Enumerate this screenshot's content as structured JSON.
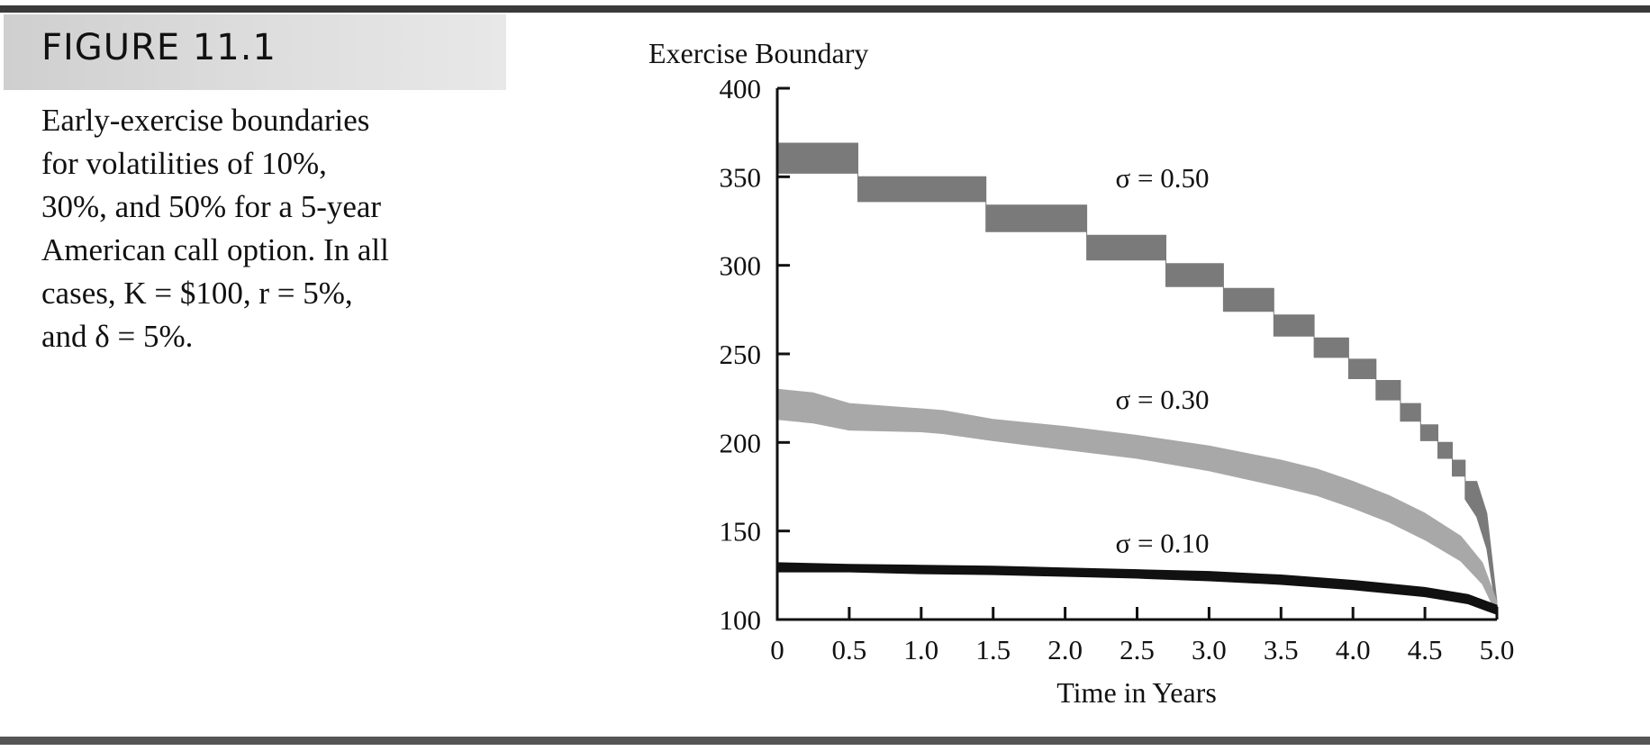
{
  "figure": {
    "label": "FIGURE 11.1",
    "caption_lines": [
      "Early-exercise boundaries",
      "for volatilities of 10%,",
      "30%, and 50% for a 5-year",
      "American call option. In all",
      "cases, K = $100, r = 5%,",
      "and δ = 5%."
    ]
  },
  "chart_data": {
    "type": "line",
    "title": "",
    "ylabel": "Exercise Boundary",
    "xlabel": "Time in Years",
    "xlim": [
      0,
      5
    ],
    "ylim": [
      100,
      400
    ],
    "x_ticks": [
      "0",
      "0.5",
      "1.0",
      "1.5",
      "2.0",
      "2.5",
      "3.0",
      "3.5",
      "4.0",
      "4.5",
      "5.0"
    ],
    "y_ticks": [
      "100",
      "150",
      "200",
      "250",
      "300",
      "350",
      "400"
    ],
    "grid": false,
    "colors": {
      "sigma_050": "#7a7a7a",
      "sigma_030": "#a8a8a8",
      "sigma_010": "#111111"
    },
    "series": [
      {
        "name": "σ = 0.50",
        "band_upper": [
          [
            0,
            369
          ],
          [
            0.56,
            369
          ],
          [
            0.56,
            350
          ],
          [
            1.45,
            350
          ],
          [
            1.45,
            334
          ],
          [
            2.15,
            334
          ],
          [
            2.15,
            317
          ],
          [
            2.7,
            317
          ],
          [
            2.7,
            301
          ],
          [
            3.1,
            301
          ],
          [
            3.1,
            287
          ],
          [
            3.45,
            287
          ],
          [
            3.45,
            272
          ],
          [
            3.73,
            272
          ],
          [
            3.73,
            259
          ],
          [
            3.97,
            259
          ],
          [
            3.97,
            247
          ],
          [
            4.16,
            247
          ],
          [
            4.16,
            235
          ],
          [
            4.33,
            235
          ],
          [
            4.33,
            222
          ],
          [
            4.47,
            222
          ],
          [
            4.47,
            210
          ],
          [
            4.59,
            210
          ],
          [
            4.59,
            200
          ],
          [
            4.69,
            200
          ],
          [
            4.69,
            190
          ],
          [
            4.78,
            190
          ],
          [
            4.78,
            178
          ],
          [
            4.86,
            178
          ],
          [
            4.93,
            160
          ],
          [
            5.0,
            110
          ]
        ],
        "band_lower": [
          [
            0,
            352
          ],
          [
            0.56,
            352
          ],
          [
            0.56,
            336
          ],
          [
            1.45,
            336
          ],
          [
            1.45,
            319
          ],
          [
            2.15,
            319
          ],
          [
            2.15,
            303
          ],
          [
            2.7,
            303
          ],
          [
            2.7,
            288
          ],
          [
            3.1,
            288
          ],
          [
            3.1,
            274
          ],
          [
            3.45,
            274
          ],
          [
            3.45,
            260
          ],
          [
            3.73,
            260
          ],
          [
            3.73,
            248
          ],
          [
            3.97,
            248
          ],
          [
            3.97,
            236
          ],
          [
            4.16,
            236
          ],
          [
            4.16,
            224
          ],
          [
            4.33,
            224
          ],
          [
            4.33,
            212
          ],
          [
            4.47,
            212
          ],
          [
            4.47,
            201
          ],
          [
            4.59,
            201
          ],
          [
            4.59,
            191
          ],
          [
            4.69,
            191
          ],
          [
            4.69,
            181
          ],
          [
            4.78,
            181
          ],
          [
            4.78,
            168
          ],
          [
            4.86,
            158
          ],
          [
            4.93,
            140
          ],
          [
            5.0,
            103
          ]
        ]
      },
      {
        "name": "σ = 0.30",
        "band_upper": [
          [
            0,
            230
          ],
          [
            0.25,
            228
          ],
          [
            0.5,
            222
          ],
          [
            1.0,
            219
          ],
          [
            1.15,
            218
          ],
          [
            1.5,
            213
          ],
          [
            2.0,
            209
          ],
          [
            2.5,
            204
          ],
          [
            3.0,
            198
          ],
          [
            3.5,
            190
          ],
          [
            3.75,
            185
          ],
          [
            4.0,
            178
          ],
          [
            4.25,
            170
          ],
          [
            4.5,
            160
          ],
          [
            4.75,
            147
          ],
          [
            4.9,
            132
          ],
          [
            5.0,
            110
          ]
        ],
        "band_lower": [
          [
            0,
            213
          ],
          [
            0.25,
            211
          ],
          [
            0.5,
            207
          ],
          [
            1.0,
            206
          ],
          [
            1.15,
            205
          ],
          [
            1.5,
            201
          ],
          [
            2.0,
            196
          ],
          [
            2.5,
            191
          ],
          [
            3.0,
            184
          ],
          [
            3.5,
            175
          ],
          [
            3.75,
            170
          ],
          [
            4.0,
            163
          ],
          [
            4.25,
            155
          ],
          [
            4.5,
            145
          ],
          [
            4.75,
            133
          ],
          [
            4.9,
            120
          ],
          [
            5.0,
            103
          ]
        ]
      },
      {
        "name": "σ = 0.10",
        "band_upper": [
          [
            0,
            132
          ],
          [
            0.5,
            131
          ],
          [
            1.0,
            130.5
          ],
          [
            1.5,
            130
          ],
          [
            2.0,
            129
          ],
          [
            2.5,
            128
          ],
          [
            3.0,
            127
          ],
          [
            3.5,
            125
          ],
          [
            4.0,
            122
          ],
          [
            4.5,
            118
          ],
          [
            4.8,
            114
          ],
          [
            5.0,
            108
          ]
        ],
        "band_lower": [
          [
            0,
            127
          ],
          [
            0.5,
            127
          ],
          [
            1.0,
            126
          ],
          [
            1.5,
            125.5
          ],
          [
            2.0,
            124.5
          ],
          [
            2.5,
            123.5
          ],
          [
            3.0,
            122
          ],
          [
            3.5,
            120
          ],
          [
            4.0,
            117
          ],
          [
            4.5,
            113
          ],
          [
            4.8,
            109
          ],
          [
            5.0,
            103
          ]
        ]
      }
    ],
    "annotations": [
      {
        "text": "σ = 0.50",
        "x": 2.35,
        "y": 344
      },
      {
        "text": "σ = 0.30",
        "x": 2.35,
        "y": 219
      },
      {
        "text": "σ = 0.10",
        "x": 2.35,
        "y": 138
      }
    ]
  }
}
